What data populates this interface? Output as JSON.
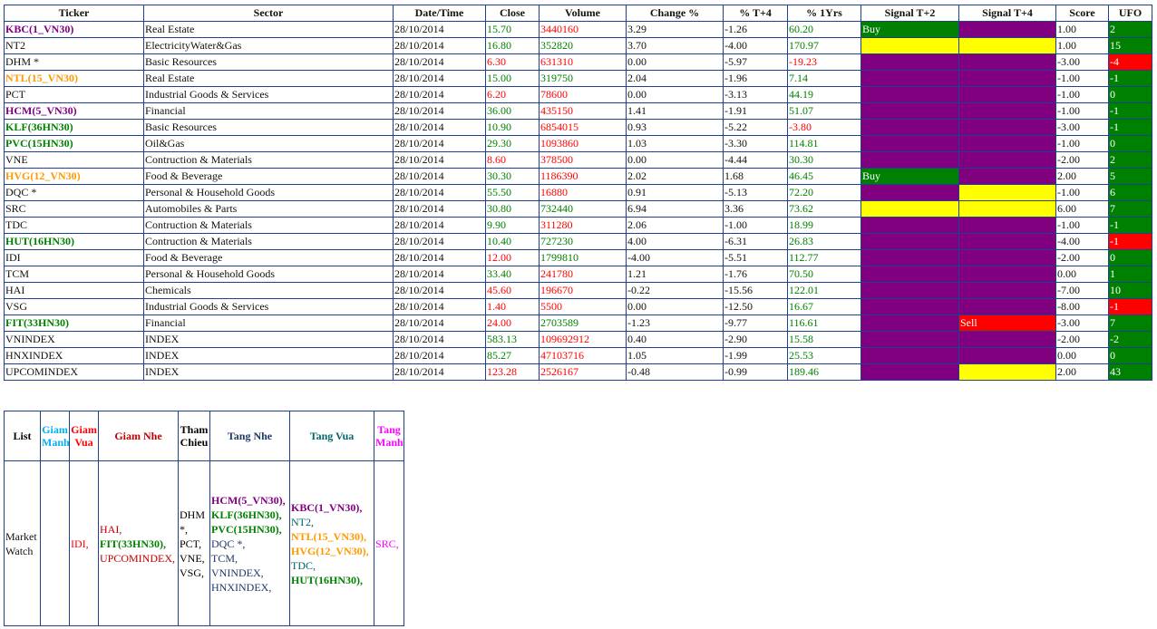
{
  "table": {
    "columns": [
      "Ticker",
      "Sector",
      "Date/Time",
      "Close",
      "Volume",
      "Change %",
      "% T+4",
      "% 1Yrs",
      "Signal T+2",
      "Signal T+4",
      "Score",
      "UFO"
    ],
    "rows": [
      {
        "ticker": "KBC(1_VN30)",
        "ticker_color": "#800080",
        "sector": "Real Estate",
        "date": "28/10/2014",
        "close": "15.70",
        "close_color": "#008000",
        "volume": "3440160",
        "volume_color": "#ff0000",
        "change": "3.29",
        "t4": "-1.26",
        "yrs": "60.20",
        "yrs_color": "#008000",
        "signal_t2": "Buy",
        "signal_t2_color": "#008000",
        "signal_t4_color": "#800080",
        "score": "1.00",
        "ufo": "2",
        "ufo_color": "#008000"
      },
      {
        "ticker": "NT2",
        "sector": "ElectricityWater&Gas",
        "date": "28/10/2014",
        "close": "16.80",
        "close_color": "#008000",
        "volume": "352820",
        "volume_color": "#008000",
        "change": "3.70",
        "t4": "-4.00",
        "yrs": "170.97",
        "yrs_color": "#008000",
        "signal_t2_color": "#ffff00",
        "signal_t4_color": "#ffff00",
        "score": "1.00",
        "ufo": "15",
        "ufo_color": "#008000"
      },
      {
        "ticker": "DHM *",
        "sector": "Basic Resources",
        "date": "28/10/2014",
        "close": "6.30",
        "close_color": "#ff0000",
        "volume": "631310",
        "volume_color": "#ff0000",
        "change": "0.00",
        "t4": "-5.97",
        "yrs": "-19.23",
        "yrs_color": "#ff0000",
        "signal_t2_color": "#800080",
        "signal_t4_color": "#800080",
        "score": "-3.00",
        "ufo": "-4",
        "ufo_color": "#ff0000"
      },
      {
        "ticker": "NTL(15_VN30)",
        "ticker_color": "#ff9900",
        "sector": "Real Estate",
        "date": "28/10/2014",
        "close": "15.00",
        "close_color": "#008000",
        "volume": "319750",
        "volume_color": "#008000",
        "change": "2.04",
        "t4": "-1.96",
        "yrs": "7.14",
        "yrs_color": "#008000",
        "signal_t2_color": "#800080",
        "signal_t4_color": "#800080",
        "score": "-1.00",
        "ufo": "-1",
        "ufo_color": "#008000"
      },
      {
        "ticker": "PCT",
        "sector": "Industrial Goods & Services",
        "date": "28/10/2014",
        "close": "6.20",
        "close_color": "#ff0000",
        "volume": "78600",
        "volume_color": "#ff0000",
        "change": "0.00",
        "t4": "-3.13",
        "yrs": "44.19",
        "yrs_color": "#008000",
        "signal_t2_color": "#800080",
        "signal_t4_color": "#800080",
        "score": "-1.00",
        "ufo": "0",
        "ufo_color": "#008000"
      },
      {
        "ticker": "HCM(5_VN30)",
        "ticker_color": "#800080",
        "sector": "Financial",
        "date": "28/10/2014",
        "close": "36.00",
        "close_color": "#008000",
        "volume": "435150",
        "volume_color": "#ff0000",
        "change": "1.41",
        "t4": "-1.91",
        "yrs": "51.07",
        "yrs_color": "#008000",
        "signal_t2_color": "#800080",
        "signal_t4_color": "#800080",
        "score": "-1.00",
        "ufo": "-1",
        "ufo_color": "#008000"
      },
      {
        "ticker": "KLF(36HN30)",
        "ticker_color": "#008000",
        "sector": "Basic Resources",
        "date": "28/10/2014",
        "close": "10.90",
        "close_color": "#008000",
        "volume": "6854015",
        "volume_color": "#ff0000",
        "change": "0.93",
        "t4": "-5.22",
        "yrs": "-3.80",
        "yrs_color": "#ff0000",
        "signal_t2_color": "#800080",
        "signal_t4_color": "#800080",
        "score": "-3.00",
        "ufo": "-1",
        "ufo_color": "#008000"
      },
      {
        "ticker": "PVC(15HN30)",
        "ticker_color": "#008000",
        "sector": "Oil&Gas",
        "date": "28/10/2014",
        "close": "29.30",
        "close_color": "#008000",
        "volume": "1093860",
        "volume_color": "#ff0000",
        "change": "1.03",
        "t4": "-3.30",
        "yrs": "114.81",
        "yrs_color": "#008000",
        "signal_t2_color": "#800080",
        "signal_t4_color": "#800080",
        "score": "-1.00",
        "ufo": "0",
        "ufo_color": "#008000"
      },
      {
        "ticker": "VNE",
        "sector": "Contruction & Materials",
        "date": "28/10/2014",
        "close": "8.60",
        "close_color": "#ff0000",
        "volume": "378500",
        "volume_color": "#ff0000",
        "change": "0.00",
        "t4": "-4.44",
        "yrs": "30.30",
        "yrs_color": "#008000",
        "signal_t2_color": "#800080",
        "signal_t4_color": "#800080",
        "score": "-2.00",
        "ufo": "2",
        "ufo_color": "#008000"
      },
      {
        "ticker": "HVG(12_VN30)",
        "ticker_color": "#ff9900",
        "sector": "Food & Beverage",
        "date": "28/10/2014",
        "close": "30.30",
        "close_color": "#008000",
        "volume": "1186390",
        "volume_color": "#ff0000",
        "change": "2.02",
        "t4": "1.68",
        "yrs": "46.45",
        "yrs_color": "#008000",
        "signal_t2": "Buy",
        "signal_t2_color": "#008000",
        "signal_t4_color": "#800080",
        "score": "2.00",
        "ufo": "5",
        "ufo_color": "#008000"
      },
      {
        "ticker": "DQC *",
        "sector": "Personal & Household Goods",
        "date": "28/10/2014",
        "close": "55.50",
        "close_color": "#008000",
        "volume": "16880",
        "volume_color": "#ff0000",
        "change": "0.91",
        "t4": "-5.13",
        "yrs": "72.20",
        "yrs_color": "#008000",
        "signal_t2_color": "#800080",
        "signal_t4_color": "#ffff00",
        "score": "-1.00",
        "ufo": "6",
        "ufo_color": "#008000"
      },
      {
        "ticker": "SRC",
        "sector": "Automobiles & Parts",
        "date": "28/10/2014",
        "close": "30.80",
        "close_color": "#008000",
        "volume": "732440",
        "volume_color": "#008000",
        "change": "6.94",
        "t4": "3.36",
        "yrs": "73.62",
        "yrs_color": "#008000",
        "signal_t2_color": "#ffff00",
        "signal_t4_color": "#ffff00",
        "score": "6.00",
        "ufo": "7",
        "ufo_color": "#008000"
      },
      {
        "ticker": "TDC",
        "sector": "Contruction & Materials",
        "date": "28/10/2014",
        "close": "9.90",
        "close_color": "#008000",
        "volume": "311280",
        "volume_color": "#ff0000",
        "change": "2.06",
        "t4": "-1.00",
        "yrs": "18.99",
        "yrs_color": "#008000",
        "signal_t2_color": "#800080",
        "signal_t4_color": "#800080",
        "score": "-1.00",
        "ufo": "-1",
        "ufo_color": "#008000"
      },
      {
        "ticker": "HUT(16HN30)",
        "ticker_color": "#008000",
        "sector": "Contruction & Materials",
        "date": "28/10/2014",
        "close": "10.40",
        "close_color": "#008000",
        "volume": "727230",
        "volume_color": "#008000",
        "change": "4.00",
        "t4": "-6.31",
        "yrs": "26.83",
        "yrs_color": "#008000",
        "signal_t2_color": "#800080",
        "signal_t4_color": "#800080",
        "score": "-4.00",
        "ufo": "-1",
        "ufo_color": "#ff0000"
      },
      {
        "ticker": "IDI",
        "sector": "Food & Beverage",
        "date": "28/10/2014",
        "close": "12.00",
        "close_color": "#ff0000",
        "volume": "1799810",
        "volume_color": "#008000",
        "change": "-4.00",
        "t4": "-5.51",
        "yrs": "112.77",
        "yrs_color": "#008000",
        "signal_t2_color": "#800080",
        "signal_t4_color": "#800080",
        "score": "-2.00",
        "ufo": "0",
        "ufo_color": "#008000"
      },
      {
        "ticker": "TCM",
        "sector": "Personal & Household Goods",
        "date": "28/10/2014",
        "close": "33.40",
        "close_color": "#008000",
        "volume": "241780",
        "volume_color": "#ff0000",
        "change": "1.21",
        "t4": "-1.76",
        "yrs": "70.50",
        "yrs_color": "#008000",
        "signal_t2_color": "#800080",
        "signal_t4_color": "#800080",
        "score": "0.00",
        "ufo": "1",
        "ufo_color": "#008000"
      },
      {
        "ticker": "HAI",
        "sector": "Chemicals",
        "date": "28/10/2014",
        "close": "45.60",
        "close_color": "#ff0000",
        "volume": "196670",
        "volume_color": "#ff0000",
        "change": "-0.22",
        "t4": "-15.56",
        "yrs": "122.01",
        "yrs_color": "#008000",
        "signal_t2_color": "#800080",
        "signal_t4_color": "#800080",
        "score": "-7.00",
        "ufo": "10",
        "ufo_color": "#008000"
      },
      {
        "ticker": "VSG",
        "sector": "Industrial Goods & Services",
        "date": "28/10/2014",
        "close": "1.40",
        "close_color": "#ff0000",
        "volume": "5500",
        "volume_color": "#ff0000",
        "change": "0.00",
        "t4": "-12.50",
        "yrs": "16.67",
        "yrs_color": "#008000",
        "signal_t2_color": "#800080",
        "signal_t4_color": "#800080",
        "score": "-8.00",
        "ufo": "-1",
        "ufo_color": "#ff0000"
      },
      {
        "ticker": "FIT(33HN30)",
        "ticker_color": "#008000",
        "sector": "Financial",
        "date": "28/10/2014",
        "close": "24.00",
        "close_color": "#ff0000",
        "volume": "2703589",
        "volume_color": "#008000",
        "change": "-1.23",
        "t4": "-9.77",
        "yrs": "116.61",
        "yrs_color": "#008000",
        "signal_t2_color": "#800080",
        "signal_t4": "Sell",
        "signal_t4_color": "#ff0000",
        "score": "-3.00",
        "ufo": "7",
        "ufo_color": "#008000"
      },
      {
        "ticker": "VNINDEX",
        "sector": "INDEX",
        "date": "28/10/2014",
        "close": "583.13",
        "close_color": "#008000",
        "volume": "109692912",
        "volume_color": "#ff0000",
        "change": "0.40",
        "t4": "-2.90",
        "yrs": "15.58",
        "yrs_color": "#008000",
        "signal_t2_color": "#800080",
        "signal_t4_color": "#800080",
        "score": "-2.00",
        "ufo": "-2",
        "ufo_color": "#008000"
      },
      {
        "ticker": "HNXINDEX",
        "sector": "INDEX",
        "date": "28/10/2014",
        "close": "85.27",
        "close_color": "#008000",
        "volume": "47103716",
        "volume_color": "#ff0000",
        "change": "1.05",
        "t4": "-1.99",
        "yrs": "25.53",
        "yrs_color": "#008000",
        "signal_t2_color": "#800080",
        "signal_t4_color": "#800080",
        "score": "0.00",
        "ufo": "0",
        "ufo_color": "#008000"
      },
      {
        "ticker": "UPCOMINDEX",
        "sector": "INDEX",
        "date": "28/10/2014",
        "close": "123.28",
        "close_color": "#ff0000",
        "volume": "2526167",
        "volume_color": "#ff0000",
        "change": "-0.48",
        "t4": "-0.99",
        "yrs": "189.46",
        "yrs_color": "#008000",
        "signal_t2_color": "#800080",
        "signal_t4_color": "#ffff00",
        "score": "2.00",
        "ufo": "43",
        "ufo_color": "#008000"
      }
    ]
  },
  "watch": {
    "columns": [
      {
        "text": "List",
        "color": "#000000"
      },
      {
        "text": "Giam Manh",
        "color": "#00b0f0"
      },
      {
        "text": "Giam Vua",
        "color": "#ff0000"
      },
      {
        "text": "Giam Nhe",
        "color": "#c00000"
      },
      {
        "text": "Tham Chieu",
        "color": "#000000"
      },
      {
        "text": "Tang Nhe",
        "color": "#1f3864"
      },
      {
        "text": "Tang Vua",
        "color": "#006666"
      },
      {
        "text": "Tang Manh",
        "color": "#ff00ff"
      }
    ],
    "list": "Market Watch",
    "cells": [
      [],
      [
        {
          "text": "IDI,",
          "color": "#ff0000"
        }
      ],
      [
        {
          "text": "HAI,",
          "color": "#c00000"
        },
        {
          "text": "FIT(33HN30),",
          "color": "#008000",
          "bold": true
        },
        {
          "text": "UPCOMINDEX,",
          "color": "#c00000"
        }
      ],
      [
        {
          "text": "DHM *,",
          "color": "#000000"
        },
        {
          "text": "PCT,",
          "color": "#000000"
        },
        {
          "text": "VNE,",
          "color": "#000000"
        },
        {
          "text": "VSG,",
          "color": "#000000"
        }
      ],
      [
        {
          "text": "HCM(5_VN30),",
          "color": "#800080",
          "bold": true
        },
        {
          "text": "KLF(36HN30),",
          "color": "#008000",
          "bold": true
        },
        {
          "text": "PVC(15HN30),",
          "color": "#008000",
          "bold": true
        },
        {
          "text": "DQC *,",
          "color": "#1f3864"
        },
        {
          "text": "TCM,",
          "color": "#1f3864"
        },
        {
          "text": "VNINDEX,",
          "color": "#1f3864"
        },
        {
          "text": "HNXINDEX,",
          "color": "#1f3864"
        }
      ],
      [
        {
          "text": "KBC(1_VN30),",
          "color": "#800080",
          "bold": true
        },
        {
          "text": "NT2,",
          "color": "#006666"
        },
        {
          "text": "NTL(15_VN30),",
          "color": "#ff9900",
          "bold": true
        },
        {
          "text": "HVG(12_VN30),",
          "color": "#ff9900",
          "bold": true
        },
        {
          "text": "TDC,",
          "color": "#006666"
        },
        {
          "text": "HUT(16HN30),",
          "color": "#008000",
          "bold": true
        }
      ],
      [
        {
          "text": "SRC,",
          "color": "#ff00ff"
        }
      ]
    ]
  }
}
